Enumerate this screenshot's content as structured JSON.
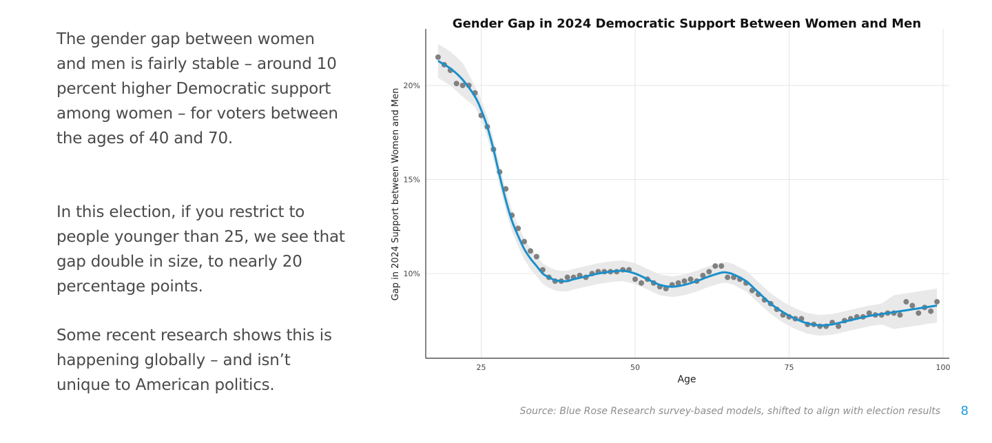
{
  "slide": {
    "paragraphs": [
      "The gender gap between women and men is fairly stable – around 10 percent higher Democratic support among women – for voters between the ages of 40 and 70.",
      "In this election, if you restrict to people younger than 25, we see that gap double in size, to nearly 20 percentage points.",
      "Some recent research shows this is happening globally – and isn’t unique to American politics."
    ],
    "source": "Source: Blue Rose Research survey-based models, shifted to align with election results",
    "page_number": "8"
  },
  "chart_data": {
    "type": "scatter",
    "title": "Gender Gap in 2024 Democratic Support Between Women and Men",
    "xlabel": "Age",
    "ylabel": "Gap in 2024 Support between Women and Men",
    "xlim": [
      16,
      101
    ],
    "ylim": [
      5.5,
      23
    ],
    "x_ticks": [
      25,
      50,
      75,
      100
    ],
    "y_ticks": [
      10,
      15,
      20
    ],
    "y_tick_labels": [
      "10%",
      "15%",
      "20%"
    ],
    "grid": true,
    "colors": {
      "points": "#808080",
      "line": "#1a8fc9",
      "band": "#e9e9e9",
      "grid": "#e6e6e6",
      "axis": "#333333"
    },
    "points": {
      "x": [
        18,
        19,
        20,
        21,
        22,
        23,
        24,
        25,
        26,
        27,
        28,
        29,
        30,
        31,
        32,
        33,
        34,
        35,
        36,
        37,
        38,
        39,
        40,
        41,
        42,
        43,
        44,
        45,
        46,
        47,
        48,
        49,
        50,
        51,
        52,
        53,
        54,
        55,
        56,
        57,
        58,
        59,
        60,
        61,
        62,
        63,
        64,
        65,
        66,
        67,
        68,
        69,
        70,
        71,
        72,
        73,
        74,
        75,
        76,
        77,
        78,
        79,
        80,
        81,
        82,
        83,
        84,
        85,
        86,
        87,
        88,
        89,
        90,
        91,
        92,
        93,
        94,
        95,
        96,
        97,
        98,
        99
      ],
      "y": [
        21.5,
        21.1,
        20.8,
        20.1,
        20.0,
        20.0,
        19.6,
        18.4,
        17.8,
        16.6,
        15.4,
        14.5,
        13.1,
        12.4,
        11.7,
        11.2,
        10.9,
        10.2,
        9.8,
        9.6,
        9.6,
        9.8,
        9.8,
        9.9,
        9.8,
        10.0,
        10.1,
        10.1,
        10.1,
        10.1,
        10.2,
        10.2,
        9.7,
        9.5,
        9.7,
        9.5,
        9.3,
        9.2,
        9.4,
        9.5,
        9.6,
        9.7,
        9.6,
        9.9,
        10.1,
        10.4,
        10.4,
        9.8,
        9.8,
        9.7,
        9.5,
        9.1,
        8.9,
        8.6,
        8.4,
        8.1,
        7.8,
        7.7,
        7.6,
        7.6,
        7.3,
        7.3,
        7.2,
        7.2,
        7.4,
        7.2,
        7.5,
        7.6,
        7.7,
        7.7,
        7.9,
        7.8,
        7.8,
        7.9,
        7.9,
        7.8,
        8.5,
        8.3,
        7.9,
        8.2,
        8.0,
        8.5
      ]
    },
    "smooth_line": {
      "x": [
        18,
        20,
        22,
        24,
        25,
        26,
        27,
        28,
        29,
        30,
        31,
        32,
        33,
        34,
        35,
        36,
        37,
        38,
        39,
        40,
        42,
        44,
        46,
        48,
        50,
        52,
        54,
        56,
        58,
        60,
        62,
        64,
        65,
        66,
        68,
        70,
        72,
        74,
        76,
        78,
        80,
        82,
        84,
        86,
        88,
        90,
        92,
        94,
        96,
        98,
        99
      ],
      "y": [
        21.3,
        20.9,
        20.3,
        19.4,
        18.7,
        17.8,
        16.6,
        15.2,
        13.9,
        12.8,
        12.0,
        11.3,
        10.8,
        10.4,
        10.0,
        9.8,
        9.65,
        9.6,
        9.6,
        9.7,
        9.85,
        10.0,
        10.1,
        10.15,
        10.0,
        9.7,
        9.4,
        9.3,
        9.4,
        9.6,
        9.85,
        10.05,
        10.05,
        9.95,
        9.6,
        9.0,
        8.4,
        7.95,
        7.6,
        7.35,
        7.25,
        7.3,
        7.45,
        7.6,
        7.75,
        7.85,
        7.95,
        8.05,
        8.15,
        8.25,
        8.3
      ]
    }
  }
}
